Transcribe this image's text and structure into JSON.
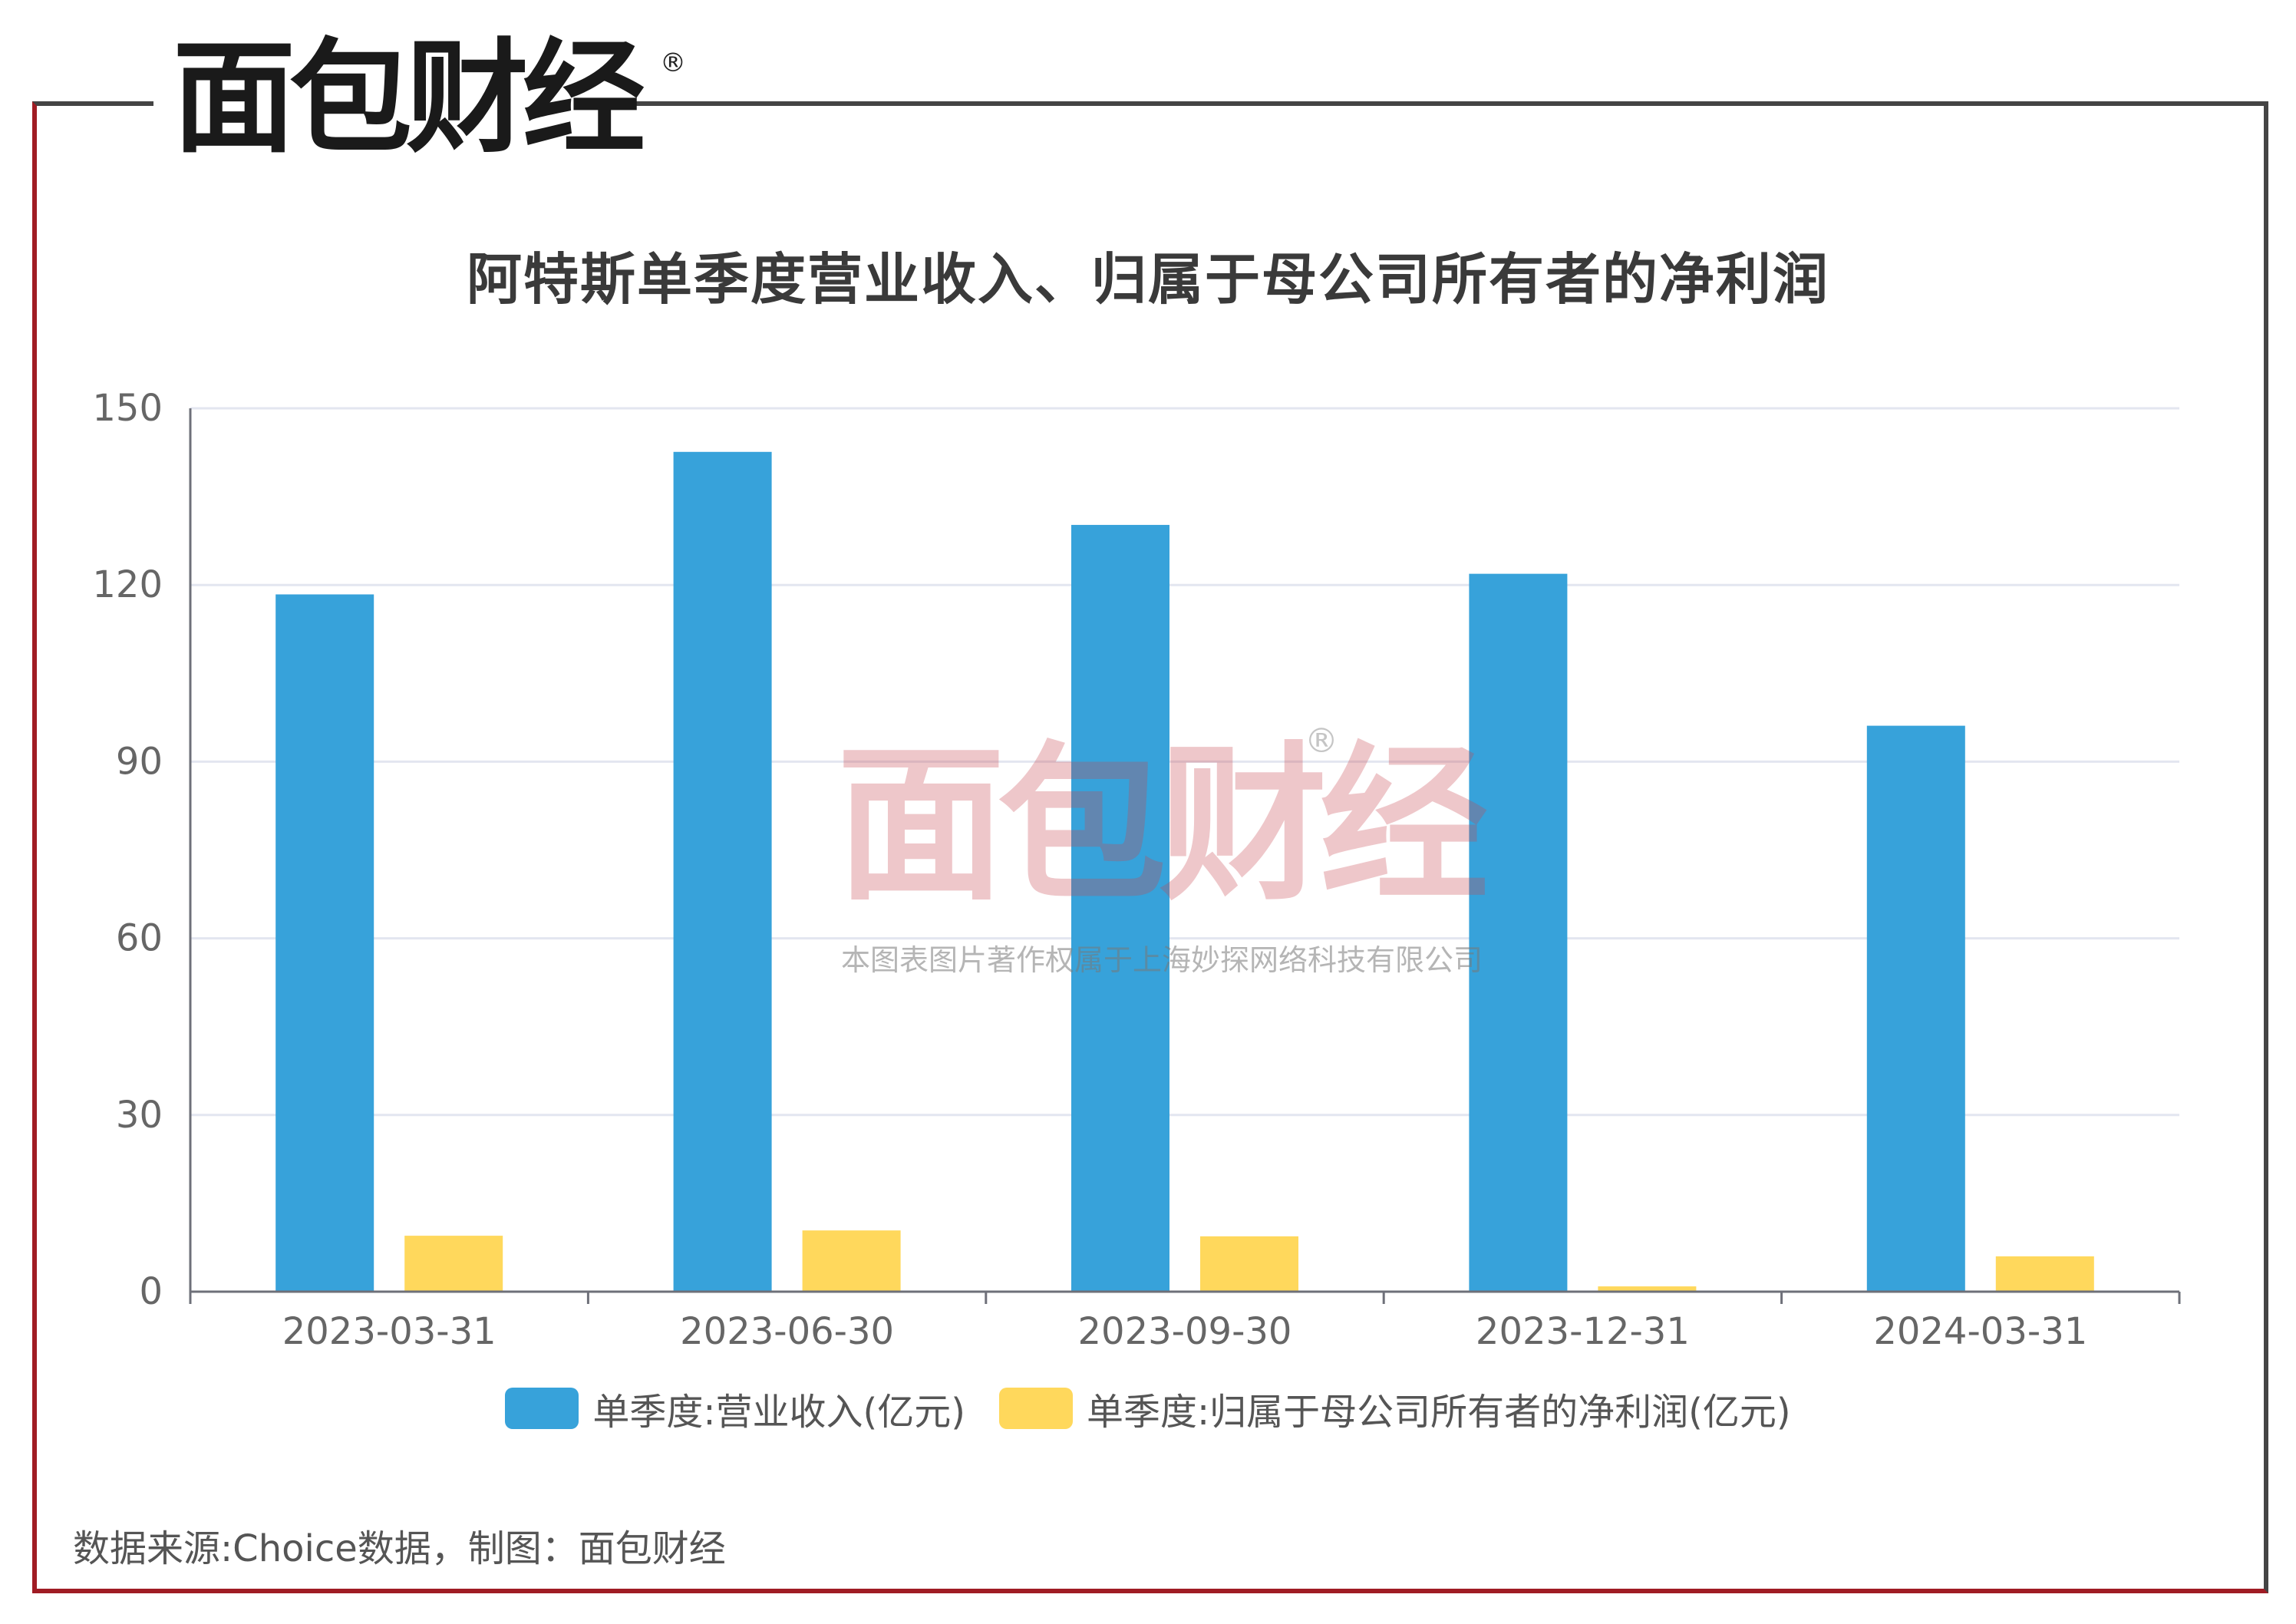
{
  "brand": {
    "logo_text": "面包财经",
    "reg_mark": "®"
  },
  "chart_data": {
    "type": "bar",
    "title": "阿特斯单季度营业收入、归属于母公司所有者的净利润",
    "categories": [
      "2023-03-31",
      "2023-06-30",
      "2023-09-30",
      "2023-12-31",
      "2024-03-31"
    ],
    "series": [
      {
        "name": "单季度:营业收入(亿元)",
        "color": "#37a2da",
        "values": [
          118.4,
          142.6,
          130.2,
          121.9,
          96.1
        ]
      },
      {
        "name": "单季度:归属于母公司所有者的净利润(亿元)",
        "color": "#ffd85c",
        "values": [
          9.5,
          10.4,
          9.4,
          0.9,
          6.0
        ]
      }
    ],
    "yticks": [
      0,
      30,
      60,
      90,
      120,
      150
    ],
    "ylim": [
      0,
      150
    ],
    "grid": true,
    "legend_position": "bottom"
  },
  "watermark": {
    "text": "面包财经",
    "reg_mark": "®",
    "copyright": "本图表图片著作权属于上海妙探网络科技有限公司"
  },
  "footer": {
    "source": "数据来源:Choice数据，制图：面包财经"
  }
}
